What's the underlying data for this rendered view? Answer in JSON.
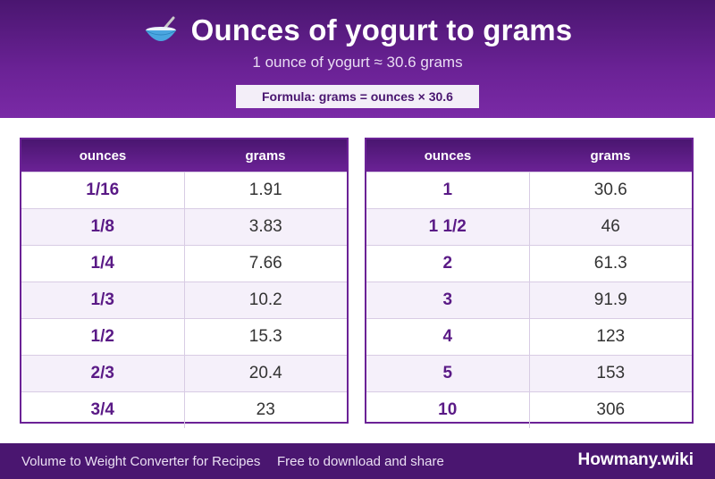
{
  "header": {
    "title": "Ounces of yogurt to grams",
    "subtitle": "1 ounce of yogurt ≈ 30.6 grams",
    "formula": "Formula: grams = ounces × 30.6",
    "icon": "bowl-icon"
  },
  "columns": {
    "ounces": "ounces",
    "grams": "grams"
  },
  "left_table": {
    "rows": [
      {
        "ounces": "1/16",
        "grams": "1.91"
      },
      {
        "ounces": "1/8",
        "grams": "3.83"
      },
      {
        "ounces": "1/4",
        "grams": "7.66"
      },
      {
        "ounces": "1/3",
        "grams": "10.2"
      },
      {
        "ounces": "1/2",
        "grams": "15.3"
      },
      {
        "ounces": "2/3",
        "grams": "20.4"
      },
      {
        "ounces": "3/4",
        "grams": "23"
      }
    ]
  },
  "right_table": {
    "rows": [
      {
        "ounces": "1",
        "grams": "30.6"
      },
      {
        "ounces": "1 1/2",
        "grams": "46"
      },
      {
        "ounces": "2",
        "grams": "61.3"
      },
      {
        "ounces": "3",
        "grams": "91.9"
      },
      {
        "ounces": "4",
        "grams": "123"
      },
      {
        "ounces": "5",
        "grams": "153"
      },
      {
        "ounces": "10",
        "grams": "306"
      }
    ]
  },
  "footer": {
    "left": "Volume to Weight Converter for Recipes",
    "middle": "Free to download and share",
    "brand": "Howmany.wiki"
  },
  "colors": {
    "primary": "#4a1670",
    "accent": "#6b2296",
    "stripe": "#f5f0fa"
  }
}
